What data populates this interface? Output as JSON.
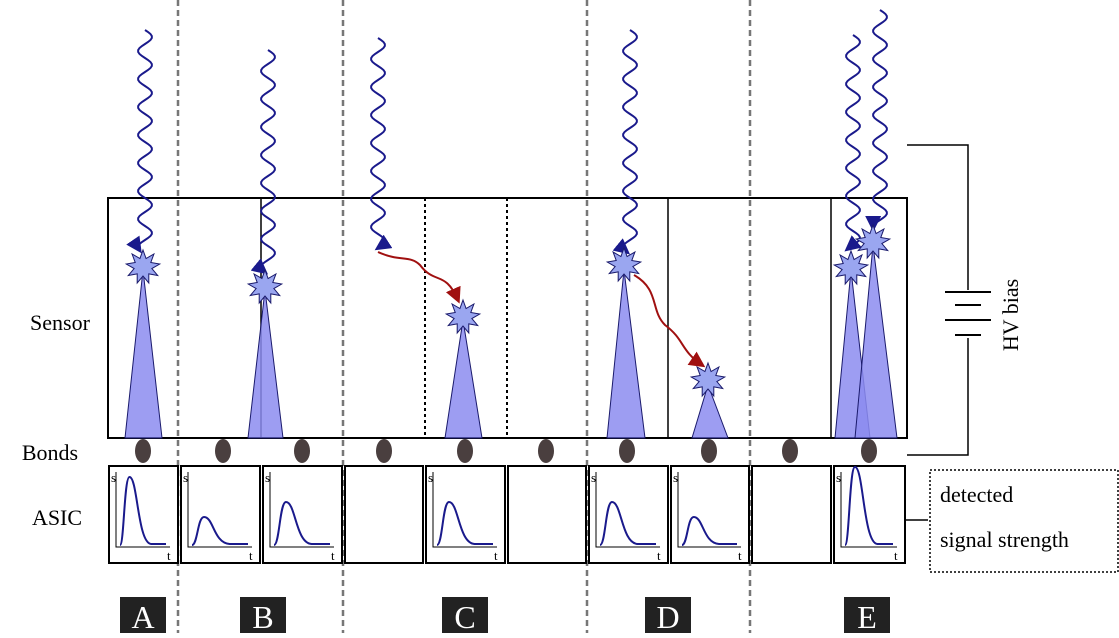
{
  "labels": {
    "sensor": "Sensor",
    "bonds": "Bonds",
    "asic": "ASIC",
    "hv": "HV bias"
  },
  "callout": {
    "line1": "detected",
    "line2": "signal strength"
  },
  "plot_axis": {
    "s": "s",
    "t": "t"
  },
  "cases": [
    "A",
    "B",
    "C",
    "D",
    "E"
  ]
}
